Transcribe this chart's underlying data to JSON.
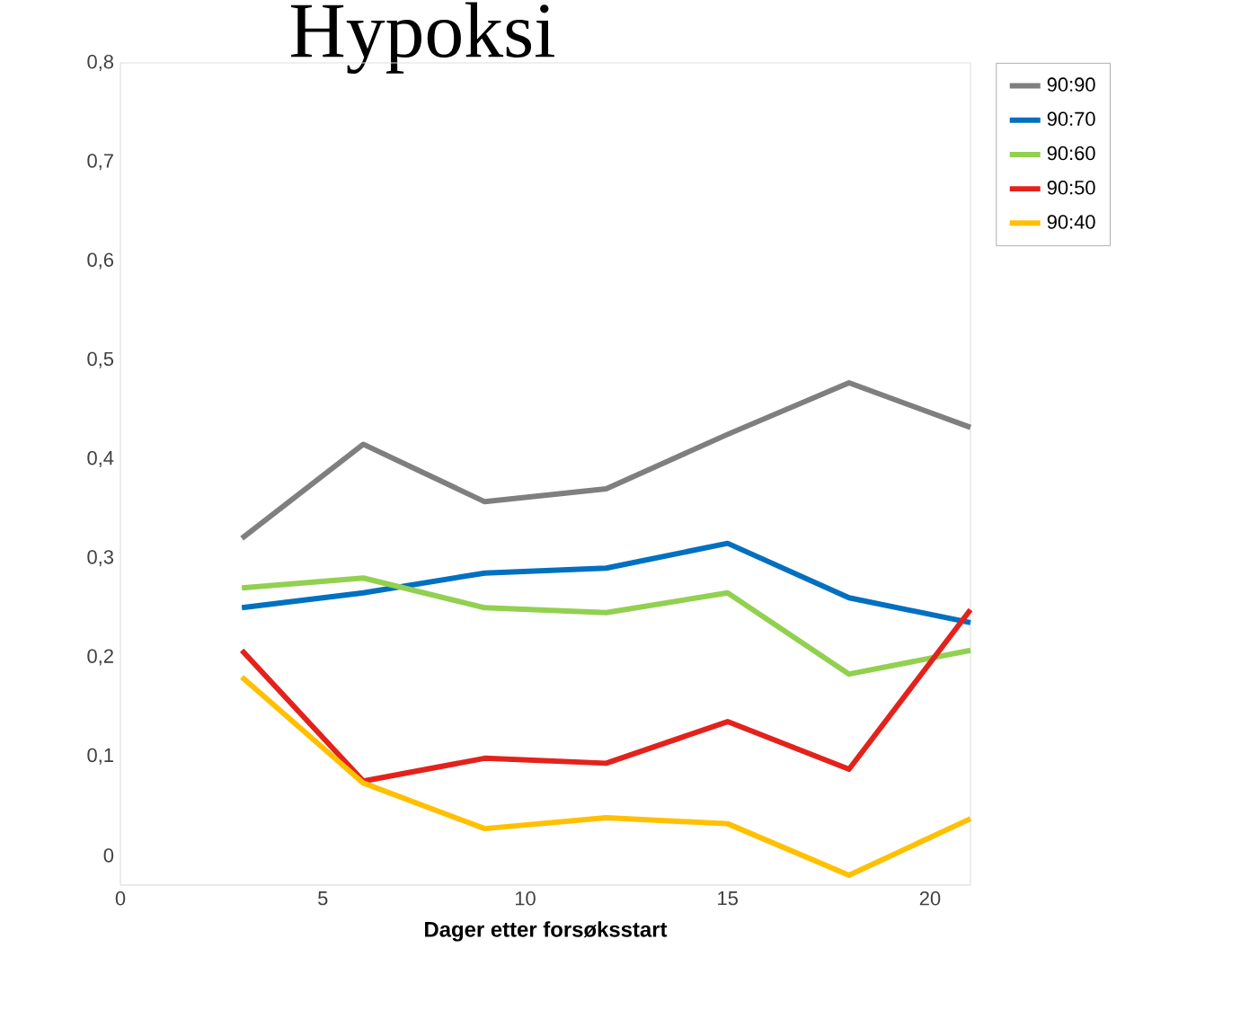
{
  "chart_data": {
    "type": "line",
    "title": "Hypoksi",
    "xlabel": "Dager etter forsøksstart",
    "x": [
      3,
      6,
      9,
      12,
      15,
      18,
      21
    ],
    "series": [
      {
        "name": "90:90",
        "color": "#7f7f7f",
        "values": [
          0.32,
          0.415,
          0.357,
          0.37,
          0.425,
          0.477,
          0.432
        ]
      },
      {
        "name": "90:70",
        "color": "#0070c0",
        "values": [
          0.25,
          0.265,
          0.285,
          0.29,
          0.315,
          0.26,
          0.235
        ]
      },
      {
        "name": "90:60",
        "color": "#92d050",
        "values": [
          0.27,
          0.28,
          0.25,
          0.245,
          0.265,
          0.183,
          0.207
        ]
      },
      {
        "name": "90:50",
        "color": "#e3221c",
        "values": [
          0.207,
          0.075,
          0.098,
          0.093,
          0.135,
          0.087,
          0.248
        ]
      },
      {
        "name": "90:40",
        "color": "#ffc000",
        "values": [
          0.18,
          0.073,
          0.027,
          0.038,
          0.032,
          -0.02,
          0.037
        ]
      }
    ],
    "xlim": [
      0,
      21
    ],
    "xticks": [
      0,
      5,
      10,
      15,
      20
    ],
    "ylim": [
      -0.03,
      0.8
    ],
    "yticks": [
      {
        "value": 0,
        "label": "0"
      },
      {
        "value": 0.1,
        "label": "0,1"
      },
      {
        "value": 0.2,
        "label": "0,2"
      },
      {
        "value": 0.3,
        "label": "0,3"
      },
      {
        "value": 0.4,
        "label": "0,4"
      },
      {
        "value": 0.5,
        "label": "0,5"
      },
      {
        "value": 0.6,
        "label": "0,6"
      },
      {
        "value": 0.7,
        "label": "0,7"
      },
      {
        "value": 0.8,
        "label": "0,8"
      }
    ],
    "legend": "top right",
    "marker": "none",
    "line_style": "solid",
    "grid": false
  }
}
